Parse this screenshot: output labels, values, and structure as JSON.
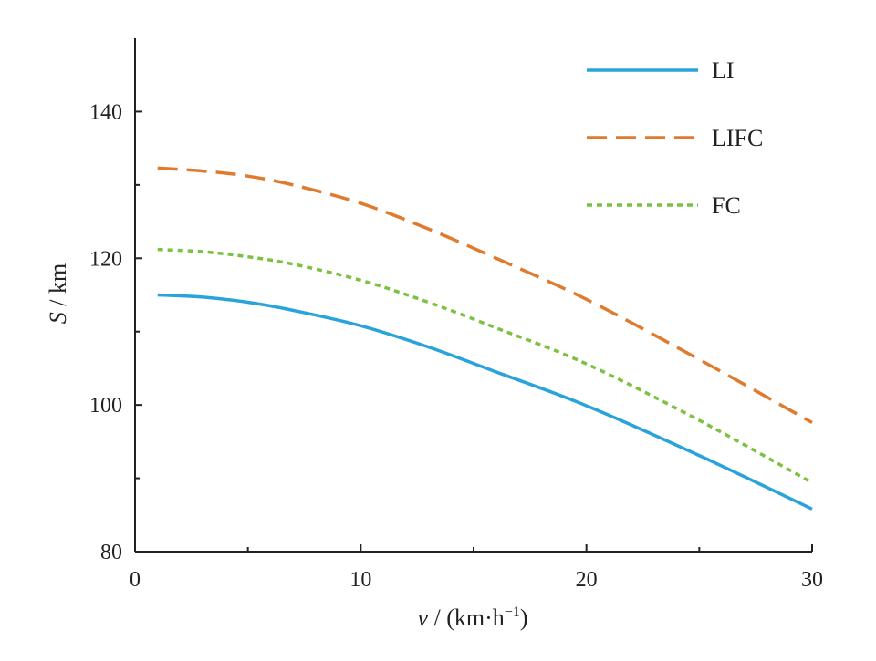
{
  "chart_data": {
    "type": "line",
    "title": "",
    "xlabel": {
      "var": "v",
      "unit": " / (km·h",
      "sup": "−1",
      "close": ")"
    },
    "ylabel": {
      "var": "S",
      "unit": " / km"
    },
    "xlim": [
      0,
      30
    ],
    "ylim": [
      80,
      150
    ],
    "xticks": [
      0,
      10,
      20,
      30
    ],
    "yticks": [
      80,
      100,
      120,
      140
    ],
    "x_minor_ticks": [
      5,
      15,
      25
    ],
    "y_minor_ticks": [
      90,
      110,
      130
    ],
    "grid": false,
    "legend_position": "top-right",
    "x": [
      1,
      3,
      5,
      7,
      10,
      13,
      16,
      20,
      25,
      30
    ],
    "series": [
      {
        "name": "LI",
        "color": "#2aa3db",
        "style": "solid",
        "values": [
          115.0,
          114.7,
          114.0,
          112.9,
          110.8,
          107.9,
          104.5,
          99.9,
          93.1,
          85.8
        ]
      },
      {
        "name": "LIFC",
        "color": "#e07b2e",
        "style": "dashed",
        "values": [
          132.3,
          131.9,
          131.2,
          130.0,
          127.5,
          124.0,
          120.0,
          114.4,
          106.2,
          97.6
        ]
      },
      {
        "name": "FC",
        "color": "#7dc143",
        "style": "dotted",
        "values": [
          121.2,
          120.9,
          120.2,
          119.2,
          117.0,
          114.0,
          110.5,
          105.6,
          97.9,
          89.4
        ]
      }
    ]
  }
}
